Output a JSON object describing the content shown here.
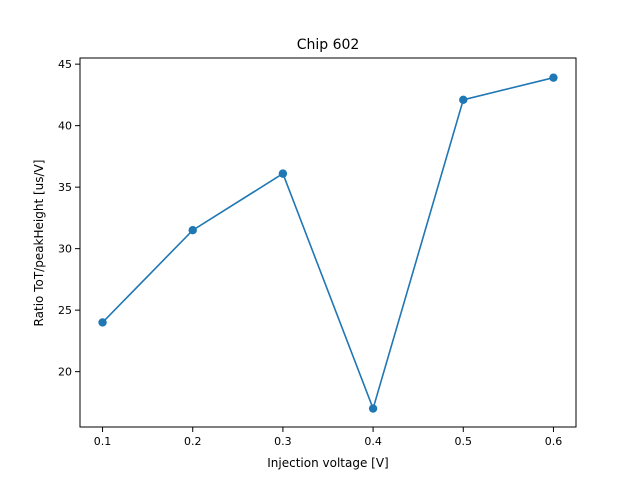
{
  "chart_data": {
    "type": "line",
    "title": "Chip 602",
    "xlabel": "Injection voltage [V]",
    "ylabel": "Ratio ToT/peakHeight [us/V]",
    "xlim": [
      0.075,
      0.625
    ],
    "ylim": [
      15.5,
      45.5
    ],
    "xticks": [
      0.1,
      0.2,
      0.3,
      0.4,
      0.5,
      0.6
    ],
    "xtick_labels": [
      "0.1",
      "0.2",
      "0.3",
      "0.4",
      "0.5",
      "0.6"
    ],
    "yticks": [
      20,
      25,
      30,
      35,
      40,
      45
    ],
    "ytick_labels": [
      "20",
      "25",
      "30",
      "35",
      "40",
      "45"
    ],
    "grid": false,
    "series": [
      {
        "x": [
          0.1,
          0.2,
          0.3,
          0.4,
          0.5,
          0.6
        ],
        "y": [
          24.0,
          31.5,
          36.1,
          17.0,
          42.1,
          43.9
        ],
        "color": "#1f77b4",
        "marker": "circle"
      }
    ]
  }
}
